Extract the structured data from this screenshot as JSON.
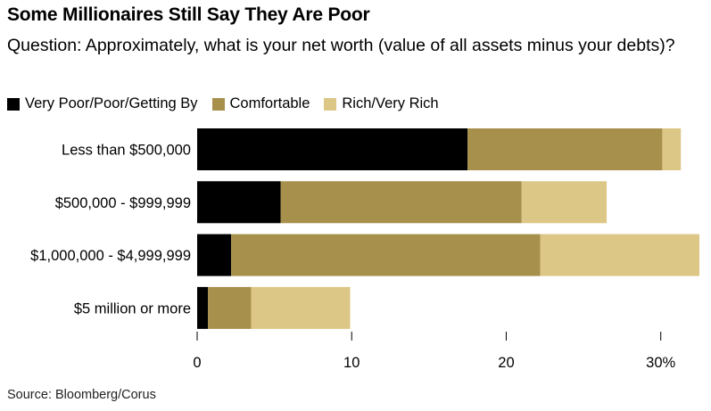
{
  "chart_data": {
    "type": "bar",
    "orientation": "horizontal",
    "stacked": true,
    "title": "Some Millionaires Still Say They Are Poor",
    "subtitle": "Question: Approximately, what is your net worth (value of all assets minus your debts)?",
    "categories": [
      "Less than $500,000",
      "$500,000 - $999,999",
      "$1,000,000 - $4,999,999",
      "$5 million or more"
    ],
    "series": [
      {
        "name": "Very Poor/Poor/Getting By",
        "color": "#000000",
        "values": [
          17.5,
          5.4,
          2.2,
          0.7
        ]
      },
      {
        "name": "Comfortable",
        "color": "#a78f4c",
        "values": [
          12.6,
          15.6,
          20.0,
          2.8
        ]
      },
      {
        "name": "Rich/Very Rich",
        "color": "#ddc786",
        "values": [
          1.2,
          5.5,
          10.3,
          6.4
        ]
      }
    ],
    "xlim": [
      0,
      32.5
    ],
    "xticks": [
      0,
      10,
      20,
      30
    ],
    "xtick_labels": [
      "0",
      "10",
      "20",
      "30%"
    ],
    "legend_position": "top-left",
    "grid": false
  },
  "source": "Source: Bloomberg/Corus"
}
